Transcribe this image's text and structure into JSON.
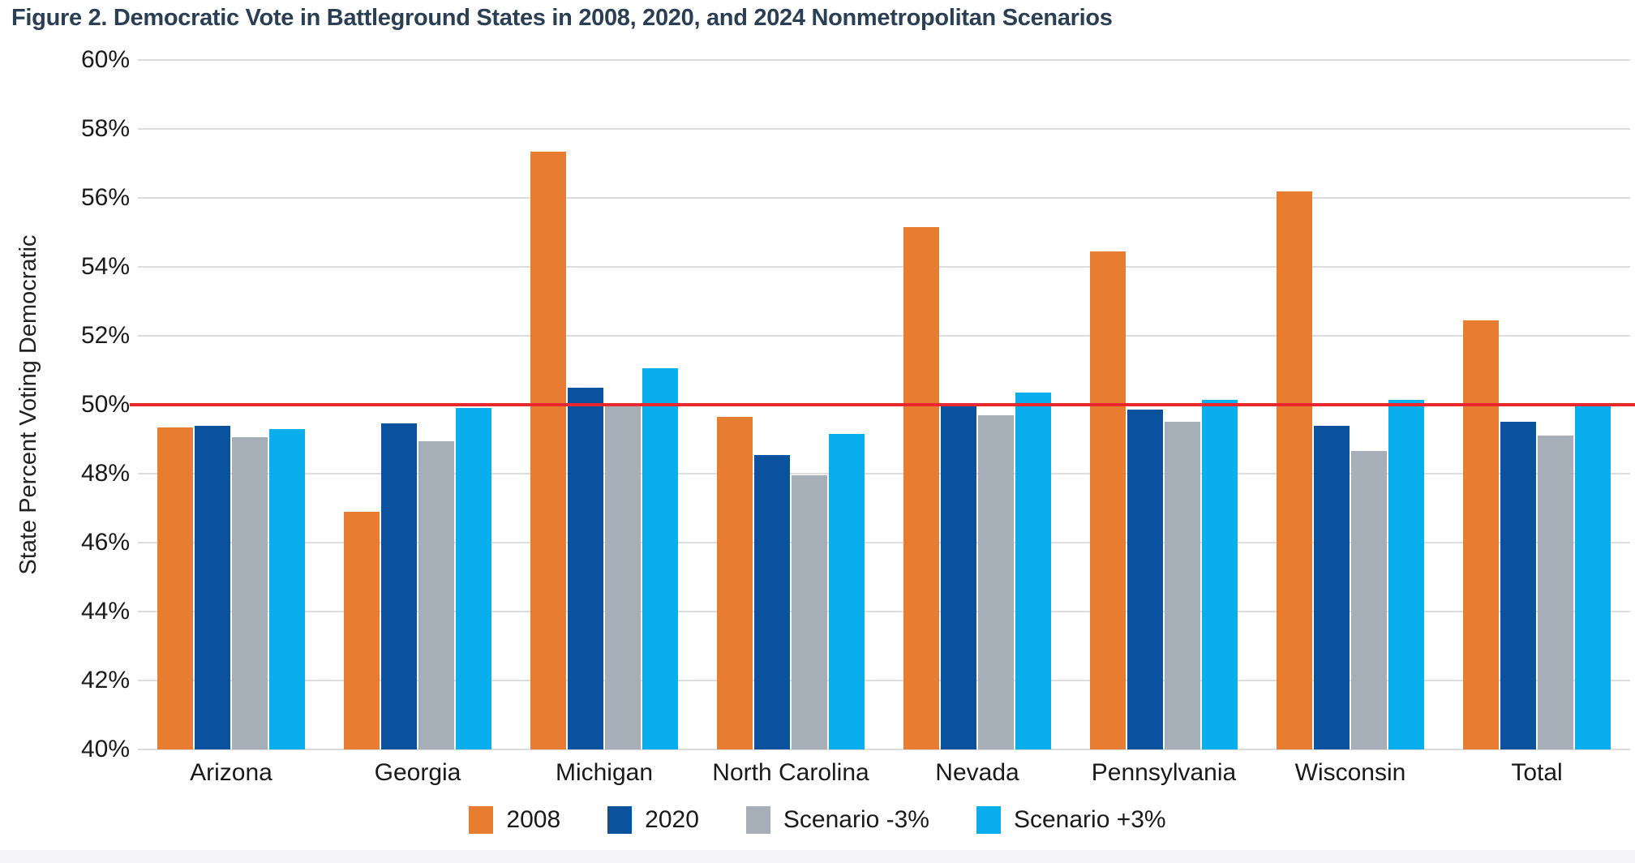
{
  "figure": {
    "title": "Figure 2. Democratic Vote in Battleground States in 2008, 2020, and 2024 Nonmetropolitan Scenarios"
  },
  "chart_data": {
    "type": "bar",
    "title": "Figure 2. Democratic Vote in Battleground States in 2008, 2020, and 2024 Nonmetropolitan Scenarios",
    "xlabel": "",
    "ylabel": "State Percent Voting Democratic",
    "ylim": [
      40,
      60
    ],
    "ytick_step": 2,
    "ytick_labels": [
      "60%",
      "58%",
      "56%",
      "54%",
      "52%",
      "50%",
      "48%",
      "46%",
      "44%",
      "42%",
      "40%"
    ],
    "grid": true,
    "legend_position": "bottom",
    "categories": [
      "Arizona",
      "Georgia",
      "Michigan",
      "North Carolina",
      "Nevada",
      "Pennsylvania",
      "Wisconsin",
      "Total"
    ],
    "series": [
      {
        "name": "2008",
        "color": "#E87D31",
        "values": [
          49.35,
          46.9,
          57.35,
          49.65,
          55.15,
          54.45,
          56.2,
          52.45
        ]
      },
      {
        "name": "2020",
        "color": "#0B529E",
        "values": [
          49.4,
          49.45,
          50.5,
          48.55,
          49.95,
          49.85,
          49.4,
          49.5
        ]
      },
      {
        "name": "Scenario -3%",
        "color": "#A6AEB8",
        "values": [
          49.05,
          48.95,
          49.95,
          47.95,
          49.7,
          49.5,
          48.65,
          49.1
        ]
      },
      {
        "name": "Scenario +3%",
        "color": "#09AEEC",
        "values": [
          49.3,
          49.9,
          51.05,
          49.15,
          50.35,
          50.15,
          50.15,
          49.95
        ]
      }
    ],
    "reference_line": {
      "value": 50,
      "color": "#E8282E"
    },
    "colors": {
      "title_text": "#2A3F54",
      "axis_text": "#1A1A1A",
      "gridline": "#DBDDDF",
      "footer_strip": "#F5F5F7"
    }
  }
}
